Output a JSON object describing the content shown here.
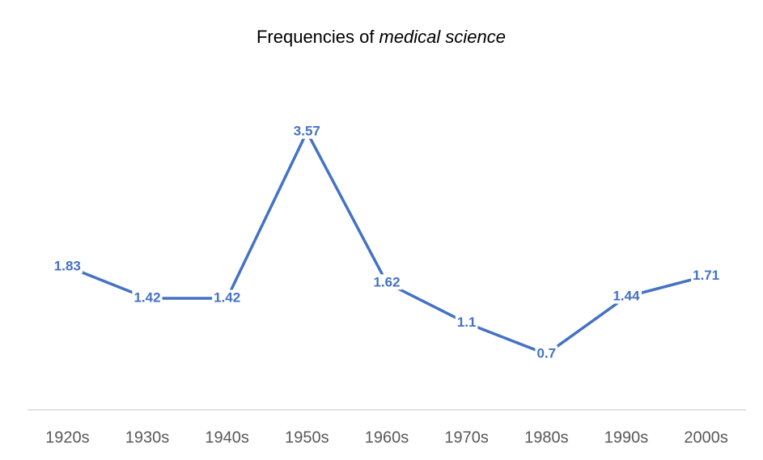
{
  "chart_data": {
    "type": "line",
    "title": [
      "Frequencies of",
      "medical science"
    ],
    "categories": [
      "1920s",
      "1930s",
      "1940s",
      "1950s",
      "1960s",
      "1970s",
      "1980s",
      "1990s",
      "2000s"
    ],
    "series": [
      {
        "color": "#4472c4",
        "values": [
          1.83,
          1.42,
          1.42,
          3.57,
          1.62,
          1.1,
          0.7,
          1.44,
          1.71
        ]
      }
    ],
    "ylim": [
      0,
      4
    ]
  }
}
